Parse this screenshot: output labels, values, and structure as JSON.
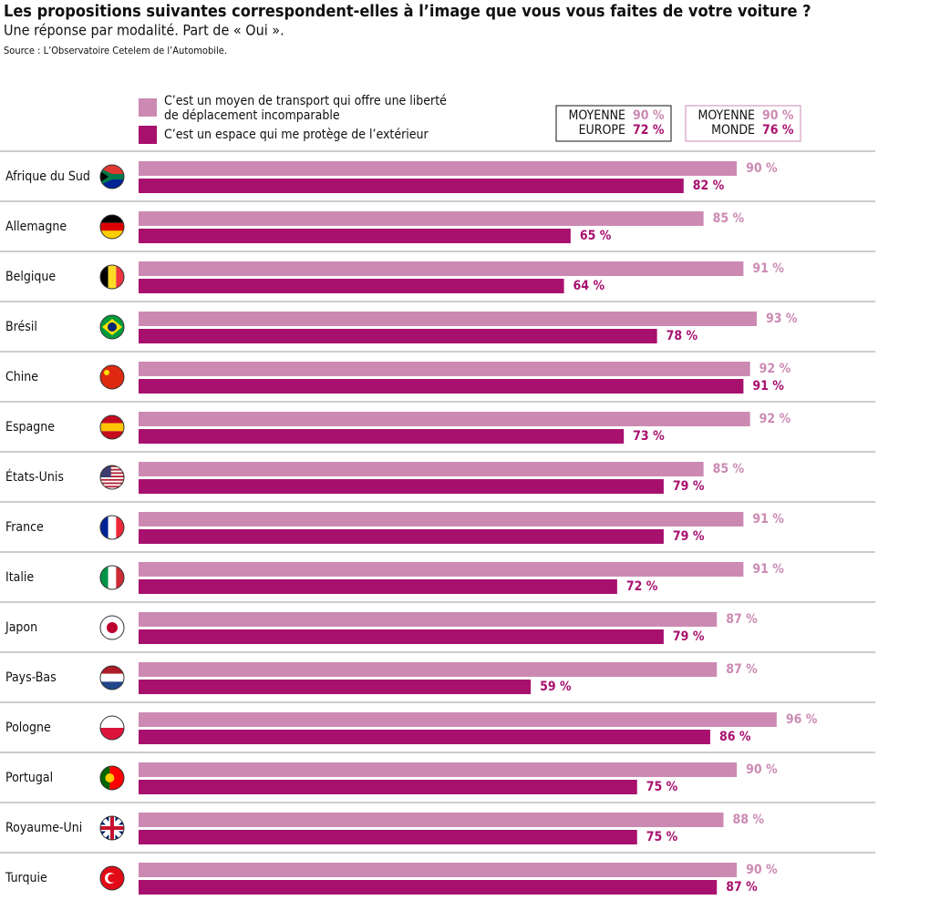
{
  "chart_data": {
    "type": "grouped-hbar",
    "title": "Les propositions suivantes correspondent-elles à l’image que vous vous faites de votre voiture ?",
    "subtitle": "Une réponse par modalité. Part de « Oui ».",
    "source": "Source : L’Observatoire Cetelem de l’Automobile.",
    "categories": [
      "Afrique du Sud",
      "Allemagne",
      "Belgique",
      "Brésil",
      "Chine",
      "Espagne",
      "États-Unis",
      "France",
      "Italie",
      "Japon",
      "Pays-Bas",
      "Pologne",
      "Portugal",
      "Royaume-Uni",
      "Turquie"
    ],
    "xlim": [
      0,
      100
    ],
    "series": [
      {
        "name_lines": [
          "C’est un moyen de transport qui offre une liberté",
          "de déplacement incomparable"
        ],
        "color": "#cc8ab3",
        "values": [
          90,
          85,
          91,
          93,
          92,
          92,
          85,
          91,
          91,
          87,
          87,
          96,
          90,
          88,
          90
        ],
        "value_labels": [
          "90 %",
          "85 %",
          "91 %",
          "93 %",
          "92 %",
          "92 %",
          "85 %",
          "91 %",
          "91 %",
          "87 %",
          "87 %",
          "96 %",
          "90 %",
          "88 %",
          "90 %"
        ]
      },
      {
        "name_lines": [
          "C’est un espace qui me protège de l’extérieur"
        ],
        "color": "#a8106e",
        "values": [
          82,
          65,
          64,
          78,
          91,
          73,
          79,
          79,
          72,
          79,
          59,
          86,
          75,
          75,
          87
        ],
        "value_labels": [
          "82 %",
          "65 %",
          "64 %",
          "78 %",
          "91 %",
          "73 %",
          "79 %",
          "79 %",
          "72 %",
          "79 %",
          "59 %",
          "86 %",
          "75 %",
          "75 %",
          "87 %"
        ]
      }
    ],
    "averages": [
      {
        "label_lines": [
          "MOYENNE",
          "EUROPE"
        ],
        "values": [
          90,
          72
        ],
        "value_labels": [
          "90 %",
          "72 %"
        ],
        "border": "#111"
      },
      {
        "label_lines": [
          "MOYENNE",
          "MONDE"
        ],
        "values": [
          90,
          76
        ],
        "value_labels": [
          "90 %",
          "76 %"
        ],
        "border": "#cc8ab3"
      }
    ]
  }
}
